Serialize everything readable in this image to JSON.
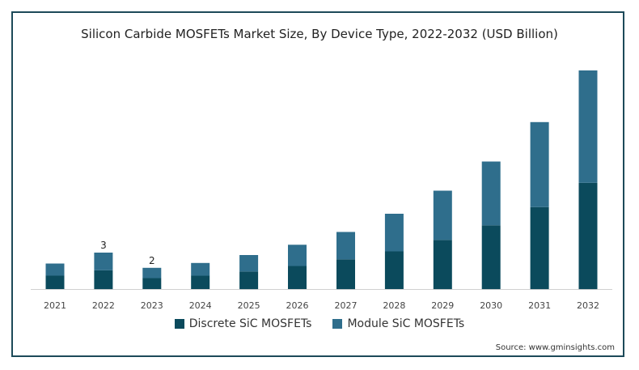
{
  "colors": {
    "frame": "#1d4a59",
    "discrete": "#0b4a5c",
    "module": "#2f6e8c"
  },
  "chart_data": {
    "type": "bar",
    "stacked": true,
    "title": "Silicon Carbide MOSFETs Market Size, By Device Type, 2022-2032 (USD Billion)",
    "xlabel": "",
    "ylabel": "",
    "categories": [
      "2021",
      "2022",
      "2023",
      "2024",
      "2025",
      "2026",
      "2027",
      "2028",
      "2029",
      "2030",
      "2031",
      "2032"
    ],
    "series": [
      {
        "name": "Discrete SiC MOSFETs",
        "values": [
          1.1,
          1.55,
          0.9,
          1.1,
          1.45,
          1.9,
          2.45,
          3.1,
          4.05,
          5.25,
          6.75,
          8.75
        ]
      },
      {
        "name": "Module SiC MOSFETs",
        "values": [
          1.0,
          1.45,
          0.85,
          1.05,
          1.35,
          1.75,
          2.25,
          3.1,
          4.05,
          5.25,
          7.0,
          9.25
        ]
      }
    ],
    "data_labels": [
      {
        "category": "2022",
        "text": "3"
      },
      {
        "category": "2023",
        "text": "2"
      }
    ],
    "ylim": [
      0,
      18
    ],
    "grid": false,
    "legend_position": "bottom"
  },
  "legend": {
    "discrete_label": "Discrete SiC MOSFETs",
    "module_label": "Module SiC MOSFETs"
  },
  "source": "Source: www.gminsights.com"
}
